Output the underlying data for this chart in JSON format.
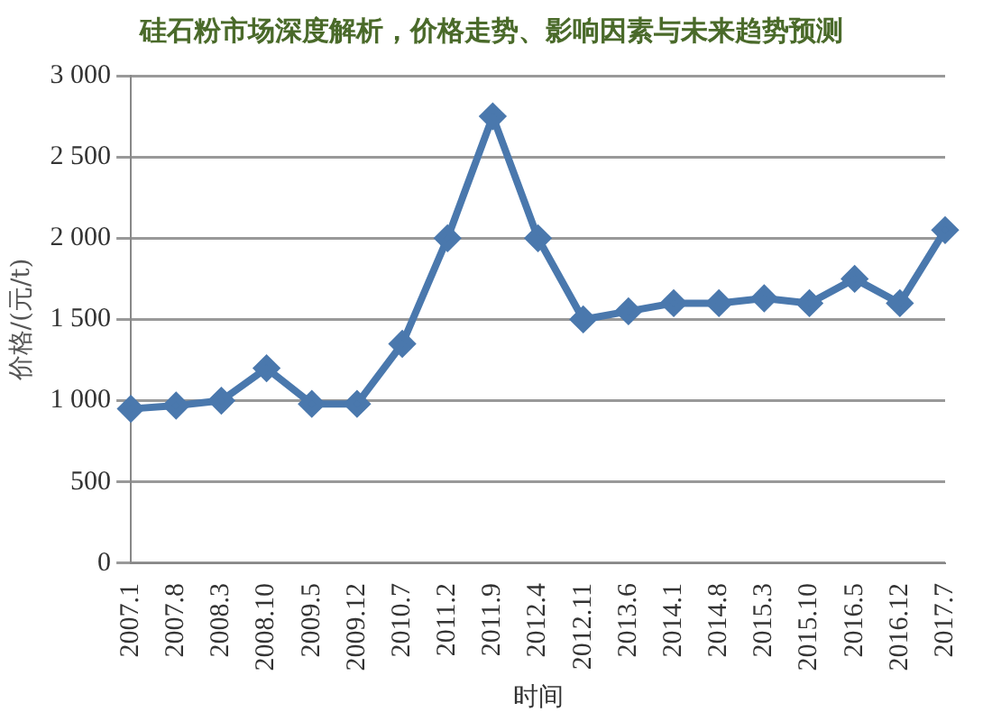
{
  "chart_data": {
    "type": "line",
    "title": "硅石粉市场深度解析，价格走势、影响因素与未来趋势预测",
    "xlabel": "时间",
    "ylabel": "价格/(元/t)",
    "categories": [
      "2007.1",
      "2007.8",
      "2008.3",
      "2008.10",
      "2009.5",
      "2009.12",
      "2010.7",
      "2011.2",
      "2011.9",
      "2012.4",
      "2012.11",
      "2013.6",
      "2014.1",
      "2014.8",
      "2015.3",
      "2015.10",
      "2016.5",
      "2016.12",
      "2017.7"
    ],
    "series": [
      {
        "color": "#4a78ad",
        "values": [
          950,
          970,
          1000,
          1200,
          980,
          980,
          1350,
          2000,
          2750,
          2000,
          1500,
          1550,
          1600,
          1600,
          1630,
          1600,
          1750,
          1600,
          2050
        ]
      }
    ],
    "ylim": [
      0,
      3000
    ],
    "yticks": [
      0,
      {
        "value": 500,
        "label": "500"
      },
      {
        "value": 1000,
        "label": "1 000"
      },
      {
        "value": 1500,
        "label": "1 500"
      },
      {
        "value": 2000,
        "label": "2 000"
      },
      {
        "value": 2500,
        "label": "2 500"
      },
      {
        "value": 3000,
        "label": "3 000"
      }
    ],
    "grid": "y",
    "marker": "diamond",
    "line_style": "solid"
  }
}
